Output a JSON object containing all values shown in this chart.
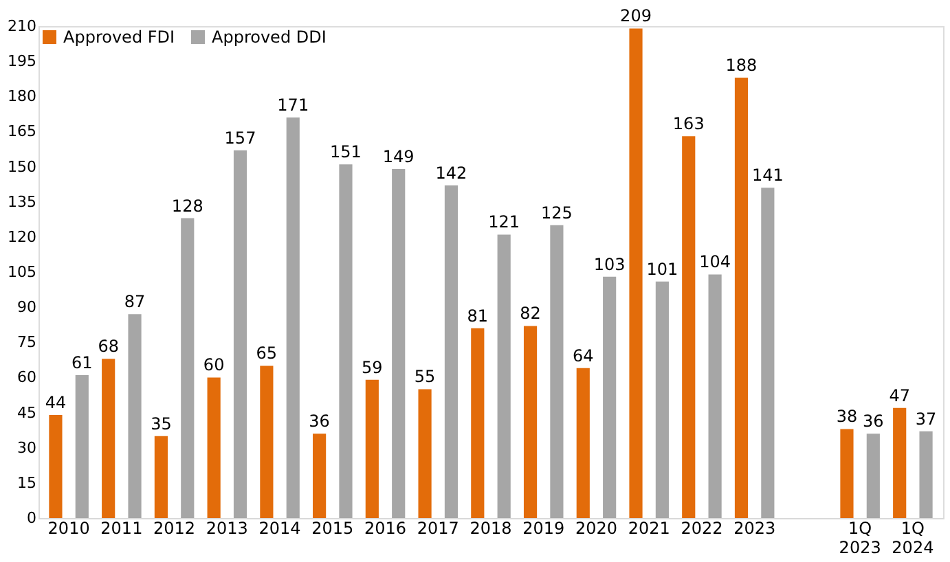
{
  "chart_data": {
    "type": "bar",
    "categories": [
      "2010",
      "2011",
      "2012",
      "2013",
      "2014",
      "2015",
      "2016",
      "2017",
      "2018",
      "2019",
      "2020",
      "2021",
      "2022",
      "2023",
      null,
      "1Q 2023",
      "1Q 2024"
    ],
    "series": [
      {
        "name": "Approved FDI",
        "color": "#e36c0a",
        "values": [
          44,
          68,
          35,
          60,
          65,
          36,
          59,
          55,
          81,
          82,
          64,
          209,
          163,
          188,
          null,
          38,
          47
        ]
      },
      {
        "name": "Approved DDI",
        "color": "#a6a6a6",
        "values": [
          61,
          87,
          128,
          157,
          171,
          151,
          149,
          142,
          121,
          125,
          103,
          101,
          104,
          141,
          null,
          36,
          37
        ]
      }
    ],
    "ylim": [
      0,
      210
    ],
    "yticks": [
      0,
      15,
      30,
      45,
      60,
      75,
      90,
      105,
      120,
      135,
      150,
      165,
      180,
      195,
      210
    ],
    "data_labels": true,
    "grid": false,
    "legend": "top left"
  }
}
